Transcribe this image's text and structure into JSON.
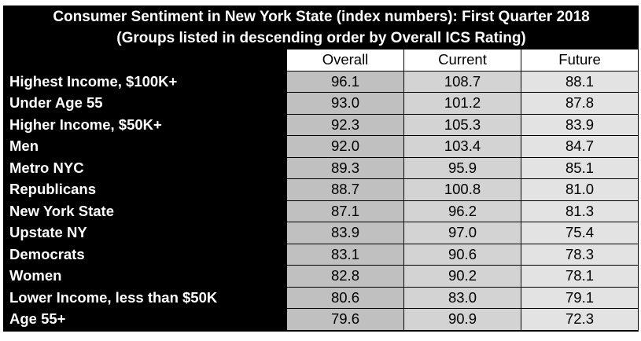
{
  "chart_data": {
    "type": "table",
    "title": "Consumer Sentiment in New York State (index numbers): First Quarter 2018",
    "subtitle": "(Groups listed in descending order by Overall ICS Rating)",
    "columns": [
      "Overall",
      "Current",
      "Future"
    ],
    "rows": [
      {
        "group": "Highest Income, $100K+",
        "values": [
          "96.1",
          "108.7",
          "88.1"
        ]
      },
      {
        "group": "Under Age 55",
        "values": [
          "93.0",
          "101.2",
          "87.8"
        ]
      },
      {
        "group": "Higher Income, $50K+",
        "values": [
          "92.3",
          "105.3",
          "83.9"
        ]
      },
      {
        "group": "Men",
        "values": [
          "92.0",
          "103.4",
          "84.7"
        ]
      },
      {
        "group": "Metro NYC",
        "values": [
          "89.3",
          "95.9",
          "85.1"
        ]
      },
      {
        "group": "Republicans",
        "values": [
          "88.7",
          "100.8",
          "81.0"
        ]
      },
      {
        "group": "New York State",
        "values": [
          "87.1",
          "96.2",
          "81.3"
        ]
      },
      {
        "group": "Upstate NY",
        "values": [
          "83.9",
          "97.0",
          "75.4"
        ]
      },
      {
        "group": "Democrats",
        "values": [
          "83.1",
          "90.6",
          "78.3"
        ]
      },
      {
        "group": "Women",
        "values": [
          "82.8",
          "90.2",
          "78.1"
        ]
      },
      {
        "group": "Lower Income, less than $50K",
        "values": [
          "80.6",
          "83.0",
          "79.1"
        ]
      },
      {
        "group": "Age 55+",
        "values": [
          "79.6",
          "90.9",
          "72.3"
        ]
      }
    ]
  },
  "colors": {
    "header_bg": "#000000",
    "header_text": "#ffffff",
    "overall_bg": "#c0c0c0",
    "current_bg": "#d3d3d3",
    "future_bg": "#e3e3e3"
  }
}
